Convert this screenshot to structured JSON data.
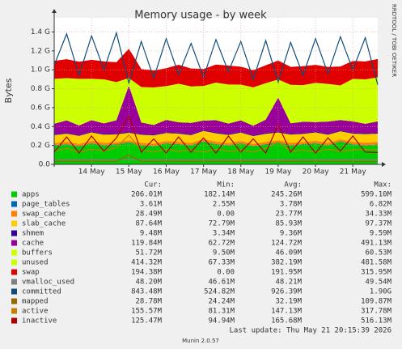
{
  "chart_data": {
    "type": "stacked-area",
    "title": "Memory usage - by week",
    "y_label": "Bytes",
    "side_text": "RRDTOOL / TOBI OETIKER",
    "footer": "Last update: Thu May 21 20:15:39 2026",
    "version": "Munin 2.0.57",
    "stats_headers": [
      "Cur:",
      "Min:",
      "Avg:",
      "Max:"
    ],
    "grid": true,
    "ylim": [
      0,
      1550000000
    ],
    "yticks": [
      {
        "value": 0,
        "label": "0.0"
      },
      {
        "value": 200000000,
        "label": "0.2 G"
      },
      {
        "value": 400000000,
        "label": "0.4 G"
      },
      {
        "value": 600000000,
        "label": "0.6 G"
      },
      {
        "value": 800000000,
        "label": "0.8 G"
      },
      {
        "value": 1000000000,
        "label": "1.0 G"
      },
      {
        "value": 1200000000,
        "label": "1.2 G"
      },
      {
        "value": 1400000000,
        "label": "1.4 G"
      }
    ],
    "categories": [
      null,
      null,
      null,
      "14 May",
      null,
      null,
      "15 May",
      null,
      null,
      "16 May",
      null,
      null,
      "17 May",
      null,
      null,
      "18 May",
      null,
      null,
      "19 May",
      null,
      null,
      "20 May",
      null,
      null,
      "21 May",
      null,
      null
    ],
    "series": [
      {
        "name": "apps",
        "color": "#00cc00",
        "kind": "area",
        "stats": [
          "206.01M",
          "182.14M",
          "245.26M",
          "599.10M"
        ],
        "values": [
          200000000.0,
          210000000.0,
          190000000.0,
          220000000.0,
          200000000.0,
          210000000.0,
          230000000.0,
          200000000.0,
          190000000.0,
          220000000.0,
          210000000.0,
          200000000.0,
          240000000.0,
          210000000.0,
          200000000.0,
          220000000.0,
          190000000.0,
          210000000.0,
          230000000.0,
          200000000.0,
          210000000.0,
          220000000.0,
          200000000.0,
          240000000.0,
          210000000.0,
          200000000.0,
          206000000.0
        ]
      },
      {
        "name": "page_tables",
        "color": "#0066b3",
        "kind": "area",
        "stats": [
          "3.61M",
          "2.55M",
          "3.78M",
          "6.82M"
        ],
        "values": [
          3700000.0,
          3800000.0,
          3600000.0,
          3900000.0,
          3700000.0,
          3800000.0,
          4000000.0,
          3700000.0,
          3600000.0,
          3800000.0,
          3700000.0,
          3800000.0,
          3900000.0,
          3700000.0,
          3600000.0,
          3800000.0,
          3700000.0,
          3800000.0,
          4000000.0,
          3700000.0,
          3800000.0,
          3900000.0,
          3700000.0,
          3800000.0,
          3700000.0,
          3600000.0,
          3610000.0
        ]
      },
      {
        "name": "swap_cache",
        "color": "#ff8000",
        "kind": "area",
        "stats": [
          "28.49M",
          "0.00",
          "23.77M",
          "34.33M"
        ],
        "values": [
          22000000.0,
          25000000.0,
          23000000.0,
          26000000.0,
          24000000.0,
          21000000.0,
          20000000.0,
          24000000.0,
          26000000.0,
          23000000.0,
          25000000.0,
          22000000.0,
          24000000.0,
          26000000.0,
          23000000.0,
          25000000.0,
          22000000.0,
          24000000.0,
          21000000.0,
          25000000.0,
          23000000.0,
          26000000.0,
          24000000.0,
          22000000.0,
          25000000.0,
          27000000.0,
          28500000.0
        ]
      },
      {
        "name": "slab_cache",
        "color": "#ffcc00",
        "kind": "area",
        "stats": [
          "87.64M",
          "72.79M",
          "85.93M",
          "97.37M"
        ],
        "values": [
          84000000.0,
          87000000.0,
          85000000.0,
          88000000.0,
          86000000.0,
          83000000.0,
          80000000.0,
          86000000.0,
          88000000.0,
          85000000.0,
          87000000.0,
          84000000.0,
          86000000.0,
          89000000.0,
          85000000.0,
          87000000.0,
          84000000.0,
          86000000.0,
          82000000.0,
          87000000.0,
          85000000.0,
          88000000.0,
          86000000.0,
          84000000.0,
          87000000.0,
          89000000.0,
          87600000.0
        ]
      },
      {
        "name": "shmem",
        "color": "#330099",
        "kind": "area",
        "stats": [
          "9.48M",
          "3.34M",
          "9.36M",
          "9.59M"
        ],
        "values": [
          9300000.0,
          9400000.0,
          9300000.0,
          9400000.0,
          9300000.0,
          9400000.0,
          9300000.0,
          9400000.0,
          9300000.0,
          9400000.0,
          9300000.0,
          9400000.0,
          9300000.0,
          9400000.0,
          9300000.0,
          9400000.0,
          9300000.0,
          9400000.0,
          9300000.0,
          9400000.0,
          9300000.0,
          9400000.0,
          9300000.0,
          9400000.0,
          9300000.0,
          9400000.0,
          9480000.0
        ]
      },
      {
        "name": "cache",
        "color": "#990099",
        "kind": "area",
        "stats": [
          "119.84M",
          "62.72M",
          "124.72M",
          "491.13M"
        ],
        "values": [
          110000000.0,
          130000000.0,
          100000000.0,
          120000000.0,
          110000000.0,
          140000000.0,
          490000000.0,
          120000000.0,
          100000000.0,
          130000000.0,
          110000000.0,
          120000000.0,
          100000000.0,
          130000000.0,
          110000000.0,
          120000000.0,
          100000000.0,
          140000000.0,
          360000000.0,
          110000000.0,
          120000000.0,
          100000000.0,
          130000000.0,
          110000000.0,
          120000000.0,
          100000000.0,
          119800000.0
        ]
      },
      {
        "name": "buffers",
        "color": "#ccff00",
        "kind": "area",
        "stats": [
          "51.72M",
          "9.50M",
          "46.09M",
          "60.53M"
        ],
        "values": [
          45000000.0,
          47000000.0,
          44000000.0,
          48000000.0,
          46000000.0,
          43000000.0,
          10000000.0,
          45000000.0,
          47000000.0,
          46000000.0,
          48000000.0,
          45000000.0,
          46000000.0,
          47000000.0,
          44000000.0,
          48000000.0,
          46000000.0,
          45000000.0,
          42000000.0,
          46000000.0,
          47000000.0,
          45000000.0,
          48000000.0,
          46000000.0,
          49000000.0,
          50000000.0,
          51700000.0
        ]
      },
      {
        "name": "unused",
        "color": "#ccff00",
        "kind": "area",
        "stats": [
          "414.32M",
          "67.33M",
          "382.19M",
          "481.58M"
        ],
        "values": [
          430000000.0,
          400000000.0,
          450000000.0,
          390000000.0,
          420000000.0,
          360000000.0,
          70000000.0,
          330000000.0,
          350000000.0,
          310000000.0,
          360000000.0,
          340000000.0,
          320000000.0,
          350000000.0,
          370000000.0,
          330000000.0,
          360000000.0,
          340000000.0,
          150000000.0,
          360000000.0,
          340000000.0,
          370000000.0,
          350000000.0,
          320000000.0,
          400000000.0,
          420000000.0,
          414000000.0
        ]
      },
      {
        "name": "swap",
        "color": "#e00000",
        "kind": "area",
        "stats": [
          "194.38M",
          "0.00",
          "191.95M",
          "315.95M"
        ],
        "values": [
          190000000.0,
          200000000.0,
          180000000.0,
          200000000.0,
          190000000.0,
          210000000.0,
          310000000.0,
          190000000.0,
          180000000.0,
          190000000.0,
          200000000.0,
          190000000.0,
          180000000.0,
          190000000.0,
          200000000.0,
          190000000.0,
          180000000.0,
          190000000.0,
          200000000.0,
          190000000.0,
          200000000.0,
          190000000.0,
          180000000.0,
          200000000.0,
          190000000.0,
          190000000.0,
          194000000.0
        ]
      },
      {
        "name": "vmalloc_used",
        "color": "#808080",
        "kind": "line",
        "stats": [
          "48.20M",
          "46.61M",
          "48.21M",
          "49.54M"
        ],
        "values": [
          48000000.0,
          48000000.0,
          48000000.0,
          48000000.0,
          48000000.0,
          48000000.0,
          48000000.0,
          48000000.0,
          48000000.0,
          48000000.0,
          48000000.0,
          48000000.0,
          48000000.0,
          48000000.0,
          48000000.0,
          48000000.0,
          48000000.0,
          48000000.0,
          48000000.0,
          48000000.0,
          48000000.0,
          48000000.0,
          48000000.0,
          48000000.0,
          48000000.0,
          48000000.0,
          48200000.0
        ]
      },
      {
        "name": "committed",
        "color": "#0f4c7a",
        "kind": "line",
        "stats": [
          "843.48M",
          "524.82M",
          "926.39M",
          "1.90G"
        ],
        "values": [
          1050000000.0,
          1380000000.0,
          940000000.0,
          1360000000.0,
          1000000000.0,
          1390000000.0,
          860000000.0,
          1300000000.0,
          910000000.0,
          1330000000.0,
          950000000.0,
          1280000000.0,
          920000000.0,
          1320000000.0,
          980000000.0,
          1300000000.0,
          900000000.0,
          1310000000.0,
          870000000.0,
          1290000000.0,
          940000000.0,
          1330000000.0,
          960000000.0,
          1350000000.0,
          1000000000.0,
          1340000000.0,
          843000000.0
        ]
      },
      {
        "name": "mapped",
        "color": "#996600",
        "kind": "line",
        "stats": [
          "28.78M",
          "24.24M",
          "32.19M",
          "109.87M"
        ],
        "values": [
          31000000.0,
          33000000.0,
          30000000.0,
          34000000.0,
          32000000.0,
          31000000.0,
          100000000.0,
          32000000.0,
          30000000.0,
          33000000.0,
          31000000.0,
          32000000.0,
          30000000.0,
          33000000.0,
          31000000.0,
          32000000.0,
          30000000.0,
          33000000.0,
          31000000.0,
          32000000.0,
          30000000.0,
          33000000.0,
          31000000.0,
          32000000.0,
          30000000.0,
          29000000.0,
          28800000.0
        ]
      },
      {
        "name": "active",
        "color": "#c87f00",
        "kind": "line",
        "stats": [
          "155.57M",
          "81.31M",
          "147.13M",
          "317.78M"
        ],
        "values": [
          140000000.0,
          170000000.0,
          130000000.0,
          160000000.0,
          140000000.0,
          180000000.0,
          310000000.0,
          150000000.0,
          130000000.0,
          160000000.0,
          140000000.0,
          150000000.0,
          130000000.0,
          160000000.0,
          140000000.0,
          150000000.0,
          130000000.0,
          170000000.0,
          240000000.0,
          140000000.0,
          150000000.0,
          130000000.0,
          160000000.0,
          140000000.0,
          150000000.0,
          160000000.0,
          155600000.0
        ]
      },
      {
        "name": "inactive",
        "color": "#aa0000",
        "kind": "line",
        "stats": [
          "125.47M",
          "94.94M",
          "165.68M",
          "516.13M"
        ],
        "values": [
          130000000.0,
          290000000.0,
          120000000.0,
          300000000.0,
          140000000.0,
          280000000.0,
          510000000.0,
          130000000.0,
          270000000.0,
          120000000.0,
          290000000.0,
          130000000.0,
          280000000.0,
          120000000.0,
          300000000.0,
          130000000.0,
          270000000.0,
          120000000.0,
          420000000.0,
          130000000.0,
          290000000.0,
          120000000.0,
          280000000.0,
          140000000.0,
          300000000.0,
          130000000.0,
          125500000.0
        ]
      }
    ]
  }
}
